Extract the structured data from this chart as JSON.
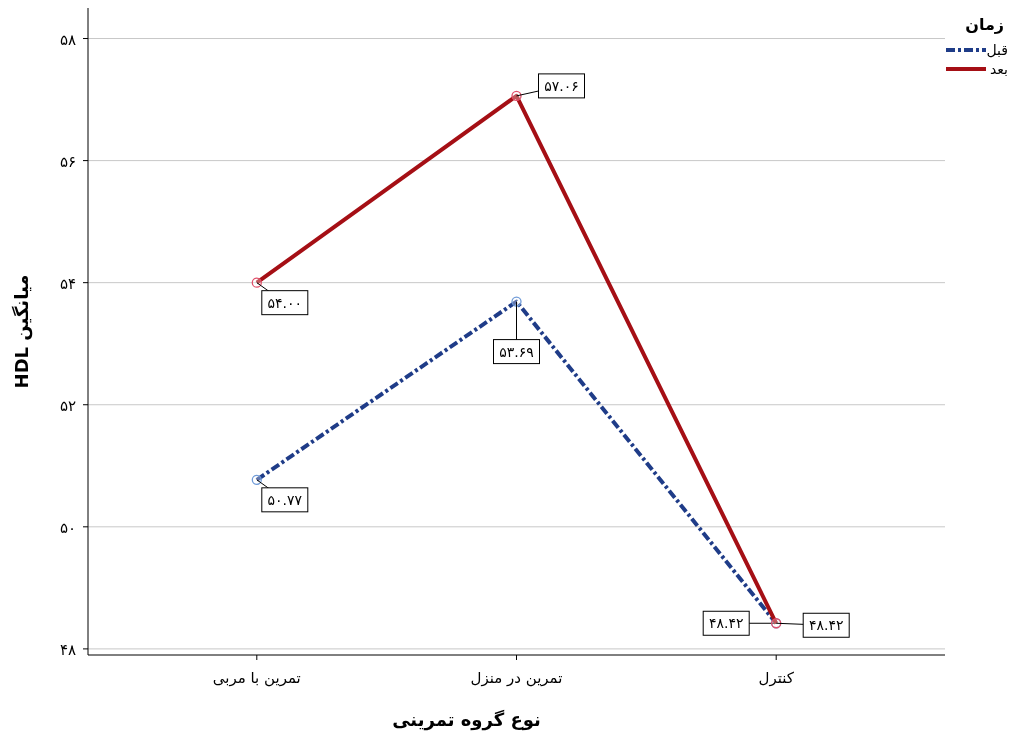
{
  "chart_data": {
    "type": "line",
    "xlabel": "نوع گروه تمرینی",
    "ylabel": "میانگین HDL",
    "legend_title": "زمان",
    "categories": [
      "تمرین با مربی",
      "تمرین در منزل",
      "کنترل"
    ],
    "series": [
      {
        "name": "قبل",
        "color": "#1f3c88",
        "line_style": "dashed",
        "values": [
          50.77,
          53.69,
          48.42
        ],
        "value_labels": [
          "۵۰.۷۷",
          "۵۳.۶۹",
          "۴۸.۴۲"
        ]
      },
      {
        "name": "بعد",
        "color": "#a50f15",
        "line_style": "solid",
        "values": [
          54.0,
          57.06,
          48.42
        ],
        "value_labels": [
          "۵۴.۰۰",
          "۵۷.۰۶",
          "۴۸.۴۲"
        ]
      }
    ],
    "ylim": [
      47.9,
      58.5
    ],
    "yticks": [
      {
        "value": 48,
        "label": "۴۸"
      },
      {
        "value": 50,
        "label": "۵۰"
      },
      {
        "value": 52,
        "label": "۵۲"
      },
      {
        "value": 54,
        "label": "۵۴"
      },
      {
        "value": 56,
        "label": "۵۶"
      },
      {
        "value": 58,
        "label": "۵۸"
      }
    ],
    "grid": "y",
    "legend": "top right",
    "marker": "circle"
  }
}
